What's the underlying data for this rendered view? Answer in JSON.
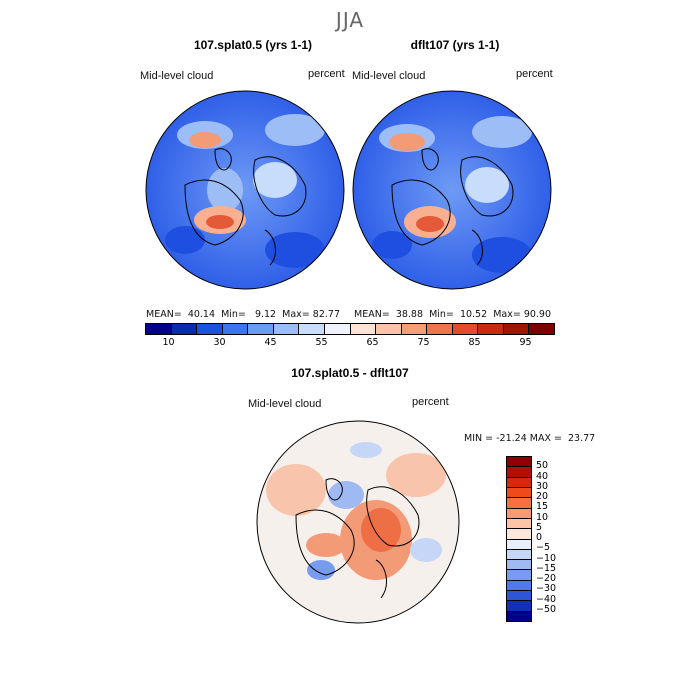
{
  "season": "JJA",
  "panels": [
    {
      "title": "107.splat0.5 (yrs 1-1)",
      "variable": "Mid-level cloud",
      "units": "percent",
      "mean_label": "MEAN=",
      "mean": "40.14",
      "min_label": "Min=",
      "min": "9.12",
      "max_label": "Max=",
      "max": "82.77"
    },
    {
      "title": "dflt107 (yrs 1-1)",
      "variable": "Mid-level cloud",
      "units": "percent",
      "mean_label": "MEAN=",
      "mean": "38.88",
      "min_label": "Min=",
      "min": "10.52",
      "max_label": "Max=",
      "max": "90.90"
    }
  ],
  "abs_colorbar": {
    "labels": [
      "10",
      "30",
      "45",
      "55",
      "65",
      "75",
      "85",
      "95"
    ],
    "colors": [
      "#00008b",
      "#0a2bb0",
      "#1f4fe0",
      "#3f72f0",
      "#6e9af5",
      "#9cbef8",
      "#c8dcfb",
      "#eef3fd",
      "#fde3d6",
      "#fbc3a8",
      "#f89d7c",
      "#f17452",
      "#e44a2b",
      "#c92a15",
      "#a31408",
      "#7c0000"
    ]
  },
  "diff_panel": {
    "title": "107.splat0.5 - dflt107",
    "variable": "Mid-level cloud",
    "units": "percent",
    "min_label": "MIN =",
    "min": "-21.24",
    "max_label": "MAX =",
    "max": "23.77"
  },
  "diff_colorbar": {
    "labels": [
      "50",
      "40",
      "30",
      "20",
      "15",
      "10",
      "5",
      "0",
      "−5",
      "−10",
      "−15",
      "−20",
      "−30",
      "−40",
      "−50"
    ],
    "colors": [
      "#8b0000",
      "#b30f00",
      "#d42a08",
      "#ee4a1c",
      "#f8703d",
      "#fb9a70",
      "#fdc4a8",
      "#fde6da",
      "#e8eefb",
      "#c6d6f7",
      "#9fb9f2",
      "#779cef",
      "#4f7bea",
      "#2c55d8",
      "#1530b4",
      "#00008b"
    ]
  },
  "map_colors": {
    "abs_base": "#2f5fe8",
    "abs_high": "#f07a55",
    "abs_light": "#9dbdf7",
    "diff_base": "#f6f0ec",
    "diff_pos": "#f39a76",
    "diff_neg": "#8fb0f2"
  }
}
